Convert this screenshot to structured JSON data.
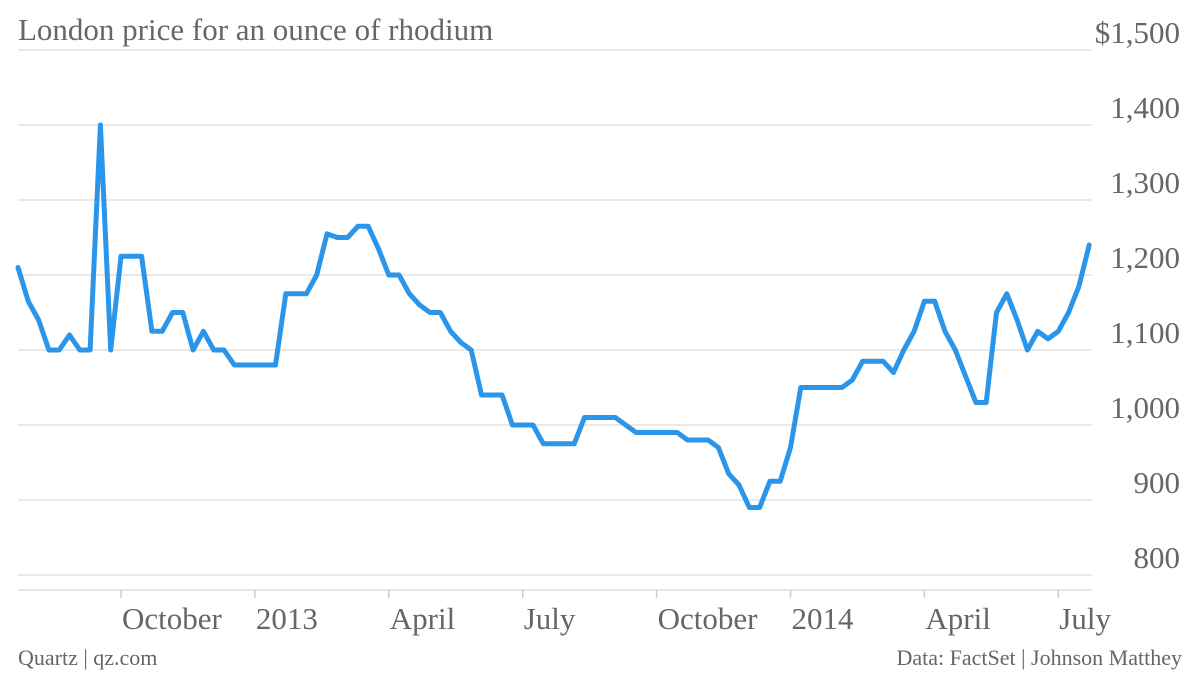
{
  "chart_data": {
    "type": "line",
    "title": "London price for an ounce of rhodium",
    "source": "Data: FactSet | Johnson Matthey",
    "credit": "Quartz | qz.com",
    "categories": [
      null,
      null,
      null,
      null,
      null,
      null,
      null,
      null,
      null,
      null,
      "October",
      null,
      null,
      null,
      null,
      null,
      null,
      null,
      null,
      null,
      null,
      null,
      null,
      "2013",
      null,
      null,
      null,
      null,
      null,
      null,
      null,
      null,
      null,
      null,
      null,
      null,
      "April",
      null,
      null,
      null,
      null,
      null,
      null,
      null,
      null,
      null,
      null,
      null,
      null,
      "July",
      null,
      null,
      null,
      null,
      null,
      null,
      null,
      null,
      null,
      null,
      null,
      null,
      "October",
      null,
      null,
      null,
      null,
      null,
      null,
      null,
      null,
      null,
      null,
      null,
      null,
      "2014",
      null,
      null,
      null,
      null,
      null,
      null,
      null,
      null,
      null,
      null,
      null,
      null,
      "April",
      null,
      null,
      null,
      null,
      null,
      null,
      null,
      null,
      null,
      null,
      null,
      null,
      "July",
      null,
      null,
      null
    ],
    "series": [
      {
        "name": "Rhodium price",
        "color": "#2b95e9",
        "values": [
          1210,
          1165,
          1140,
          1100,
          1100,
          1120,
          1100,
          1100,
          1400,
          1100,
          1225,
          1225,
          1225,
          1125,
          1125,
          1150,
          1150,
          1100,
          1125,
          1100,
          1100,
          1080,
          1080,
          1080,
          1080,
          1080,
          1175,
          1175,
          1175,
          1200,
          1255,
          1250,
          1250,
          1265,
          1265,
          1235,
          1200,
          1200,
          1175,
          1160,
          1150,
          1150,
          1125,
          1110,
          1100,
          1040,
          1040,
          1040,
          1000,
          1000,
          1000,
          975,
          975,
          975,
          975,
          1010,
          1010,
          1010,
          1010,
          1000,
          990,
          990,
          990,
          990,
          990,
          980,
          980,
          980,
          970,
          935,
          920,
          890,
          890,
          925,
          925,
          970,
          1050,
          1050,
          1050,
          1050,
          1050,
          1060,
          1085,
          1085,
          1085,
          1070,
          1100,
          1125,
          1165,
          1165,
          1125,
          1100,
          1065,
          1030,
          1030,
          1150,
          1175,
          1140,
          1100,
          1125,
          1115,
          1125,
          1150,
          1185,
          1240
        ]
      }
    ],
    "ylim": [
      800,
      1500
    ],
    "yticks": [
      800,
      900,
      {
        "value": 1000,
        "label": "1,000"
      },
      {
        "value": 1100,
        "label": "1,100"
      },
      {
        "value": 1200,
        "label": "1,200"
      },
      {
        "value": 1300,
        "label": "1,300"
      },
      {
        "value": 1400,
        "label": "1,400"
      },
      {
        "value": 1500,
        "label": "$1,500"
      }
    ],
    "grid": true
  }
}
